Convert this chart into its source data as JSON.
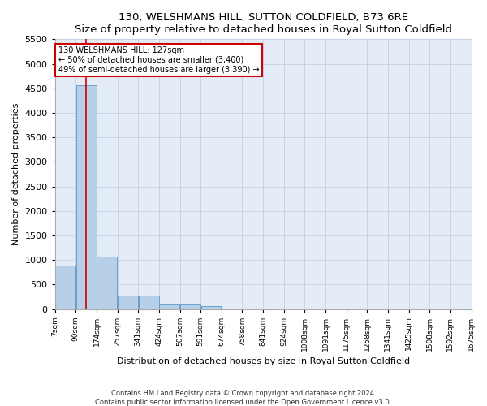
{
  "title": "130, WELSHMANS HILL, SUTTON COLDFIELD, B73 6RE",
  "subtitle": "Size of property relative to detached houses in Royal Sutton Coldfield",
  "xlabel": "Distribution of detached houses by size in Royal Sutton Coldfield",
  "ylabel": "Number of detached properties",
  "footer_line1": "Contains HM Land Registry data © Crown copyright and database right 2024.",
  "footer_line2": "Contains public sector information licensed under the Open Government Licence v3.0.",
  "annotation_line1": "130 WELSHMANS HILL: 127sqm",
  "annotation_line2": "← 50% of detached houses are smaller (3,400)",
  "annotation_line3": "49% of semi-detached houses are larger (3,390) →",
  "property_bin_index": 1.5,
  "bar_color": "#b8cfe8",
  "bar_edge_color": "#6aa0cc",
  "vline_color": "#cc0000",
  "annotation_box_color": "#cc0000",
  "grid_color": "#c8d4e4",
  "bg_color": "#e4ecf8",
  "ylim": [
    0,
    5500
  ],
  "yticks": [
    0,
    500,
    1000,
    1500,
    2000,
    2500,
    3000,
    3500,
    4000,
    4500,
    5000,
    5500
  ],
  "bin_counts": [
    880,
    4560,
    1060,
    280,
    280,
    90,
    90,
    60,
    0,
    0,
    0,
    0,
    0,
    0,
    0,
    0,
    0,
    0,
    0,
    0
  ],
  "xtick_labels": [
    "7sqm",
    "90sqm",
    "174sqm",
    "257sqm",
    "341sqm",
    "424sqm",
    "507sqm",
    "591sqm",
    "674sqm",
    "758sqm",
    "841sqm",
    "924sqm",
    "1008sqm",
    "1091sqm",
    "1175sqm",
    "1258sqm",
    "1341sqm",
    "1425sqm",
    "1508sqm",
    "1592sqm",
    "1675sqm"
  ],
  "n_bins": 20,
  "annotation_fontsize": 7.0,
  "title_fontsize": 9.5,
  "ylabel_fontsize": 8,
  "xlabel_fontsize": 8,
  "ytick_fontsize": 8,
  "xtick_fontsize": 6.5
}
